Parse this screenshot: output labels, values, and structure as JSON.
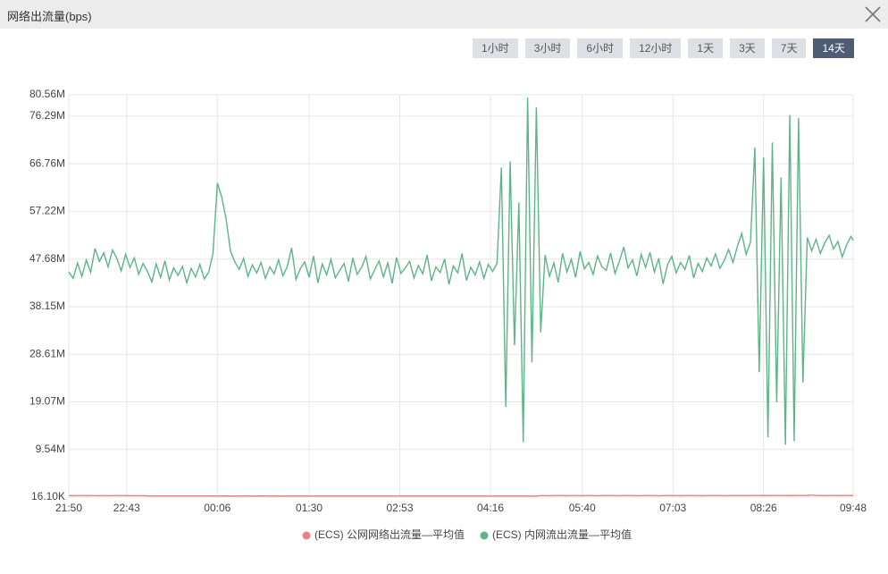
{
  "header": {
    "title": "网络出流量(bps)"
  },
  "time_ranges": {
    "options": [
      "1小时",
      "3小时",
      "6小时",
      "12小时",
      "1天",
      "3天",
      "7天",
      "14天"
    ],
    "selected_index": 7
  },
  "chart_data": {
    "type": "line",
    "x": [
      "21:50",
      "21:54",
      "21:58",
      "22:02",
      "22:06",
      "22:10",
      "22:14",
      "22:18",
      "22:22",
      "22:26",
      "22:30",
      "22:34",
      "22:38",
      "22:42",
      "22:46",
      "22:50",
      "22:54",
      "22:58",
      "23:02",
      "23:06",
      "23:10",
      "23:14",
      "23:18",
      "23:22",
      "23:26",
      "23:30",
      "23:34",
      "23:38",
      "23:42",
      "23:46",
      "23:50",
      "23:54",
      "23:58",
      "00:02",
      "00:06",
      "00:10",
      "00:14",
      "00:18",
      "00:22",
      "00:26",
      "00:30",
      "00:34",
      "00:38",
      "00:42",
      "00:46",
      "00:50",
      "00:54",
      "00:58",
      "01:02",
      "01:06",
      "01:10",
      "01:14",
      "01:18",
      "01:22",
      "01:26",
      "01:30",
      "01:34",
      "01:38",
      "01:42",
      "01:46",
      "01:50",
      "01:54",
      "01:58",
      "02:02",
      "02:06",
      "02:10",
      "02:14",
      "02:18",
      "02:22",
      "02:26",
      "02:30",
      "02:34",
      "02:38",
      "02:42",
      "02:46",
      "02:50",
      "02:54",
      "02:58",
      "03:02",
      "03:06",
      "03:10",
      "03:14",
      "03:18",
      "03:22",
      "03:26",
      "03:30",
      "03:34",
      "03:38",
      "03:42",
      "03:46",
      "03:50",
      "03:54",
      "03:58",
      "04:02",
      "04:06",
      "04:10",
      "04:14",
      "04:18",
      "04:22",
      "04:26",
      "04:30",
      "04:34",
      "04:38",
      "04:42",
      "04:46",
      "04:50",
      "04:54",
      "04:58",
      "05:02",
      "05:06",
      "05:10",
      "05:14",
      "05:18",
      "05:22",
      "05:26",
      "05:30",
      "05:34",
      "05:38",
      "05:42",
      "05:46",
      "05:50",
      "05:54",
      "05:58",
      "06:02",
      "06:06",
      "06:10",
      "06:14",
      "06:18",
      "06:22",
      "06:26",
      "06:30",
      "06:34",
      "06:38",
      "06:42",
      "06:46",
      "06:50",
      "06:54",
      "06:58",
      "07:02",
      "07:06",
      "07:10",
      "07:14",
      "07:18",
      "07:22",
      "07:26",
      "07:30",
      "07:34",
      "07:38",
      "07:42",
      "07:46",
      "07:50",
      "07:54",
      "07:58",
      "08:02",
      "08:06",
      "08:10",
      "08:14",
      "08:18",
      "08:22",
      "08:26",
      "08:30",
      "08:34",
      "08:38",
      "08:42",
      "08:46",
      "08:50",
      "08:54",
      "08:58",
      "09:02",
      "09:06",
      "09:10",
      "09:14",
      "09:18",
      "09:22",
      "09:26",
      "09:30",
      "09:34",
      "09:38",
      "09:42",
      "09:46",
      "09:48"
    ],
    "xlim": [
      "21:50",
      "09:48"
    ],
    "xticks": [
      "21:50",
      "22:43",
      "00:06",
      "01:30",
      "02:53",
      "04:16",
      "05:40",
      "07:03",
      "08:26",
      "09:48"
    ],
    "ylim": [
      16100,
      80560000
    ],
    "yticks": [
      {
        "value": 16100,
        "label": "16.10K"
      },
      {
        "value": 9540000,
        "label": "9.54M"
      },
      {
        "value": 19070000,
        "label": "19.07M"
      },
      {
        "value": 28610000,
        "label": "28.61M"
      },
      {
        "value": 38150000,
        "label": "38.15M"
      },
      {
        "value": 47680000,
        "label": "47.68M"
      },
      {
        "value": 57220000,
        "label": "57.22M"
      },
      {
        "value": 66760000,
        "label": "66.76M"
      },
      {
        "value": 76290000,
        "label": "76.29M"
      },
      {
        "value": 80560000,
        "label": "80.56M"
      }
    ],
    "grid": true,
    "series": [
      {
        "name": "(ECS) 公网网络出流量—平均值",
        "color": "#e8827e",
        "values": [
          310000,
          305000,
          320000,
          315000,
          300000,
          310000,
          325000,
          305000,
          310000,
          300000,
          315000,
          320000,
          305000,
          310000,
          300000,
          315000,
          305000,
          310000,
          260000,
          250000,
          255000,
          245000,
          250000,
          260000,
          255000,
          250000,
          245000,
          255000,
          250000,
          260000,
          245000,
          250000,
          255000,
          240000,
          235000,
          245000,
          240000,
          230000,
          240000,
          235000,
          245000,
          240000,
          230000,
          235000,
          240000,
          245000,
          235000,
          240000,
          230000,
          225000,
          235000,
          230000,
          225000,
          230000,
          235000,
          225000,
          230000,
          235000,
          225000,
          230000,
          225000,
          235000,
          230000,
          225000,
          230000,
          220000,
          225000,
          230000,
          225000,
          220000,
          230000,
          225000,
          220000,
          230000,
          225000,
          220000,
          225000,
          230000,
          220000,
          225000,
          230000,
          220000,
          225000,
          230000,
          220000,
          225000,
          220000,
          230000,
          225000,
          220000,
          225000,
          230000,
          220000,
          225000,
          220000,
          230000,
          225000,
          220000,
          230000,
          225000,
          220000,
          230000,
          225000,
          220000,
          230000,
          225000,
          220000,
          225000,
          310000,
          320000,
          305000,
          315000,
          325000,
          310000,
          300000,
          320000,
          315000,
          305000,
          325000,
          310000,
          320000,
          305000,
          315000,
          320000,
          310000,
          325000,
          305000,
          315000,
          320000,
          310000,
          305000,
          325000,
          315000,
          310000,
          320000,
          305000,
          315000,
          325000,
          320000,
          315000,
          305000,
          325000,
          310000,
          320000,
          315000,
          305000,
          325000,
          310000,
          320000,
          315000,
          305000,
          320000,
          310000,
          330000,
          320000,
          340000,
          325000,
          335000,
          345000,
          330000,
          320000,
          350000,
          335000,
          340000,
          325000,
          345000,
          330000,
          340000,
          335000,
          330000,
          420000,
          340000,
          330000,
          325000,
          335000,
          340000,
          330000,
          325000,
          335000,
          330000,
          325000
        ]
      },
      {
        "name": "(ECS) 内网流出流量—平均值",
        "color": "#5bb585",
        "values": [
          45100000,
          43800000,
          46900000,
          44200000,
          47500000,
          45000000,
          49800000,
          47200000,
          48900000,
          46100000,
          49500000,
          47800000,
          45300000,
          48600000,
          46000000,
          47900000,
          44600000,
          46800000,
          45200000,
          43100000,
          46700000,
          44000000,
          47300000,
          43500000,
          45900000,
          44400000,
          46200000,
          42900000,
          45800000,
          44100000,
          46600000,
          43700000,
          45000000,
          48800000,
          62900000,
          60100000,
          55700000,
          49300000,
          47100000,
          45600000,
          47800000,
          44200000,
          46500000,
          44900000,
          47000000,
          43800000,
          46100000,
          44700000,
          47500000,
          44300000,
          46200000,
          49900000,
          43600000,
          45800000,
          47100000,
          44000000,
          48300000,
          42900000,
          46700000,
          44500000,
          47600000,
          43900000,
          45400000,
          46800000,
          43200000,
          47900000,
          44600000,
          46000000,
          48200000,
          43700000,
          45500000,
          47300000,
          44100000,
          46900000,
          42800000,
          48000000,
          44800000,
          45900000,
          47200000,
          43900000,
          46400000,
          44700000,
          48500000,
          43300000,
          46100000,
          45000000,
          47700000,
          42600000,
          46300000,
          44900000,
          48800000,
          43400000,
          46000000,
          44500000,
          47100000,
          43800000,
          46600000,
          45200000,
          46800000,
          66000000,
          18100000,
          67200000,
          30400000,
          59000000,
          11000000,
          80000000,
          27000000,
          78000000,
          33000000,
          48500000,
          44200000,
          46900000,
          43000000,
          48800000,
          45100000,
          47600000,
          44000000,
          49200000,
          45700000,
          47000000,
          44600000,
          48300000,
          46100000,
          45400000,
          48900000,
          44800000,
          47200000,
          50100000,
          45900000,
          47500000,
          44300000,
          48600000,
          46000000,
          49000000,
          45100000,
          47800000,
          42700000,
          46500000,
          48200000,
          44900000,
          47000000,
          45600000,
          48400000,
          43900000,
          46800000,
          45200000,
          47900000,
          46300000,
          48700000,
          45800000,
          47400000,
          49600000,
          47000000,
          50200000,
          52800000,
          48600000,
          51000000,
          70000000,
          25000000,
          68000000,
          12000000,
          71000000,
          19000000,
          64000000,
          10500000,
          76500000,
          11200000,
          75900000,
          23000000,
          52000000,
          49300000,
          51600000,
          48800000,
          50900000,
          52400000,
          49700000,
          51200000,
          48100000,
          50500000,
          52200000,
          51400000
        ]
      }
    ]
  }
}
